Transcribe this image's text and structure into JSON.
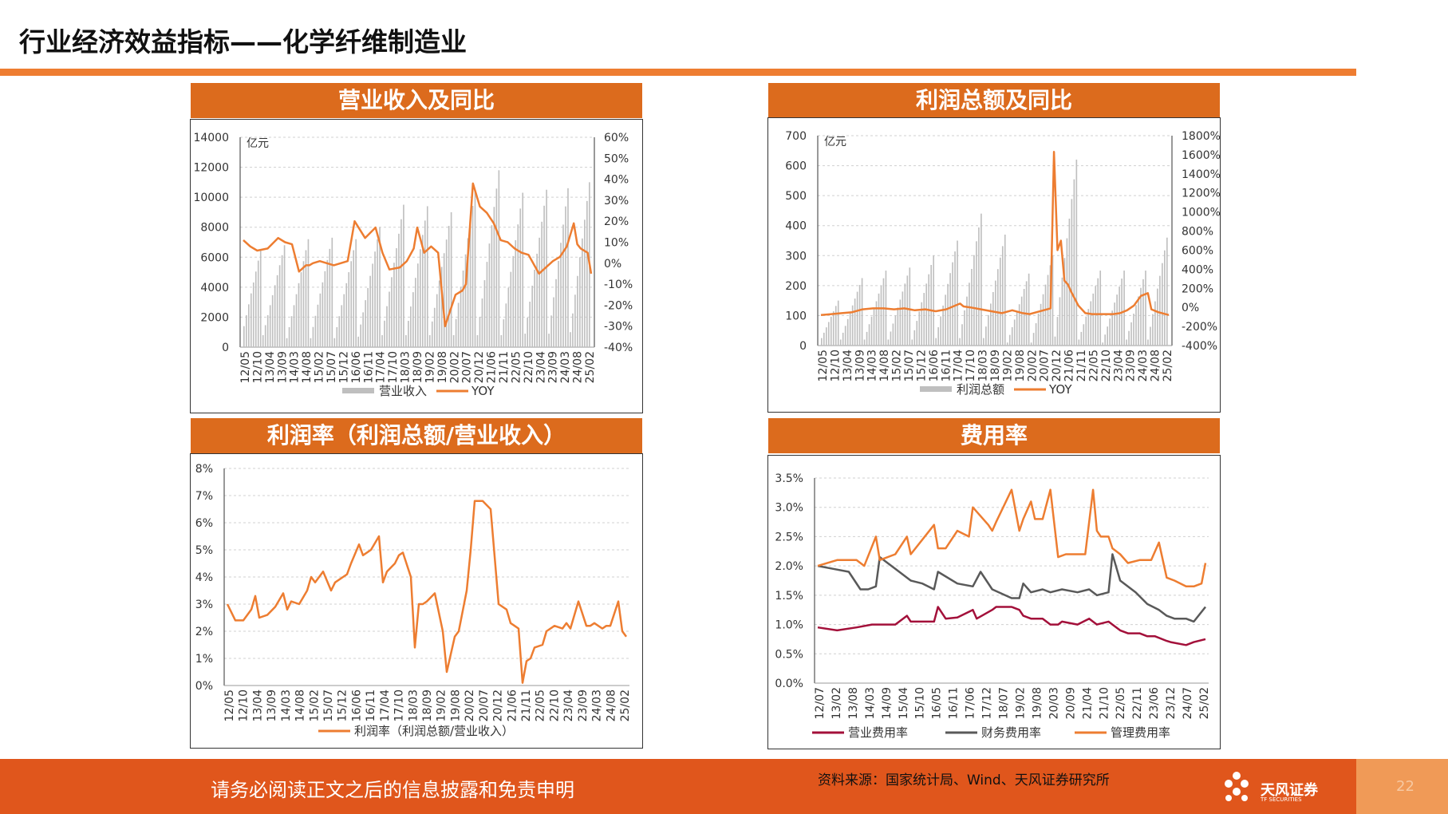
{
  "page": {
    "title": "行业经济效益指标——化学纤维制造业",
    "footer_note": "请务必阅读正文之后的信息披露和免责申明",
    "source": "资料来源：国家统计局、Wind、天风证券研究所",
    "logo_text": "天风证券",
    "logo_sub": "TF SECURITIES",
    "page_number": "22",
    "colors": {
      "accent": "#ee7d31",
      "header": "#dc6b1d",
      "footer": "#e0561c",
      "bar": "#bfbfbf",
      "line": "#ed7d31",
      "maroon": "#a3103a",
      "gray": "#595959"
    }
  },
  "chart_data": [
    {
      "id": "revenue",
      "type": "bar+line",
      "title": "营业收入及同比",
      "unit_label": "亿元",
      "x_ticks": [
        "12/05",
        "12/10",
        "13/04",
        "13/09",
        "14/03",
        "14/08",
        "15/02",
        "15/07",
        "15/12",
        "16/06",
        "16/11",
        "17/04",
        "17/10",
        "18/03",
        "18/09",
        "19/02",
        "19/08",
        "20/02",
        "20/07",
        "20/12",
        "21/06",
        "21/11",
        "22/05",
        "22/10",
        "23/04",
        "23/09",
        "24/03",
        "24/08",
        "25/02"
      ],
      "yleft_ticks": [
        "0",
        "2000",
        "4000",
        "6000",
        "8000",
        "10000",
        "12000",
        "14000"
      ],
      "yright_ticks": [
        "-40%",
        "-30%",
        "-20%",
        "-10%",
        "0%",
        "10%",
        "20%",
        "30%",
        "40%",
        "50%",
        "60%"
      ],
      "ylim_left": [
        0,
        14000
      ],
      "ylim_right": [
        -40,
        60
      ],
      "legend": [
        "营业收入",
        "YOY"
      ],
      "bar_series": {
        "name": "营业收入",
        "cycles": [
          {
            "start": 0,
            "n": 8,
            "from": 1400,
            "to": 6500
          },
          {
            "start": 8,
            "n": 10,
            "from": 800,
            "to": 6800
          },
          {
            "start": 18,
            "n": 10,
            "from": 600,
            "to": 7200
          },
          {
            "start": 28,
            "n": 10,
            "from": 600,
            "to": 7300
          },
          {
            "start": 38,
            "n": 10,
            "from": 600,
            "to": 7200
          },
          {
            "start": 48,
            "n": 10,
            "from": 700,
            "to": 8000
          },
          {
            "start": 58,
            "n": 10,
            "from": 800,
            "to": 9500
          },
          {
            "start": 68,
            "n": 10,
            "from": 800,
            "to": 9400
          },
          {
            "start": 78,
            "n": 10,
            "from": 800,
            "to": 9000
          },
          {
            "start": 88,
            "n": 10,
            "from": 800,
            "to": 10500
          },
          {
            "start": 98,
            "n": 10,
            "from": 800,
            "to": 11800
          },
          {
            "start": 108,
            "n": 10,
            "from": 800,
            "to": 10300
          },
          {
            "start": 118,
            "n": 10,
            "from": 900,
            "to": 10500
          },
          {
            "start": 128,
            "n": 9,
            "from": 900,
            "to": 10600
          },
          {
            "start": 137,
            "n": 9,
            "from": 1000,
            "to": 11000
          }
        ],
        "n_total": 146
      },
      "line_series": {
        "name": "YOY",
        "x_frac": [
          0,
          0.02,
          0.04,
          0.07,
          0.1,
          0.12,
          0.14,
          0.16,
          0.18,
          0.19,
          0.2,
          0.22,
          0.24,
          0.26,
          0.28,
          0.3,
          0.32,
          0.35,
          0.38,
          0.4,
          0.42,
          0.45,
          0.47,
          0.49,
          0.5,
          0.52,
          0.54,
          0.56,
          0.58,
          0.6,
          0.61,
          0.63,
          0.64,
          0.66,
          0.68,
          0.7,
          0.72,
          0.74,
          0.76,
          0.78,
          0.8,
          0.82,
          0.85,
          0.87,
          0.89,
          0.91,
          0.93,
          0.95,
          0.96,
          0.97,
          0.99,
          1.0
        ],
        "values": [
          11,
          8,
          6,
          7,
          12,
          10,
          9,
          -4,
          -1,
          -1,
          0,
          1,
          0,
          -1,
          0,
          1,
          20,
          12,
          17,
          5,
          -3,
          -2,
          1,
          7,
          17,
          5,
          8,
          5,
          -30,
          -20,
          -15,
          -13,
          -10,
          38,
          27,
          24,
          19,
          11,
          10,
          7,
          5,
          4,
          -5,
          -2,
          1,
          3,
          8,
          19,
          9,
          7,
          5,
          -5
        ]
      }
    },
    {
      "id": "profit",
      "type": "bar+line",
      "title": "利润总额及同比",
      "unit_label": "亿元",
      "x_ticks": [
        "12/05",
        "12/10",
        "13/04",
        "13/09",
        "14/03",
        "14/08",
        "15/02",
        "15/07",
        "15/12",
        "16/06",
        "16/11",
        "17/04",
        "17/10",
        "18/03",
        "18/09",
        "19/02",
        "19/08",
        "20/02",
        "20/07",
        "20/12",
        "21/06",
        "21/11",
        "22/05",
        "22/10",
        "23/04",
        "23/09",
        "24/03",
        "24/08",
        "25/02"
      ],
      "yleft_ticks": [
        "0",
        "100",
        "200",
        "300",
        "400",
        "500",
        "600",
        "700"
      ],
      "yright_ticks": [
        "-400%",
        "-200%",
        "0%",
        "200%",
        "400%",
        "600%",
        "800%",
        "1000%",
        "1200%",
        "1400%",
        "1600%",
        "1800%"
      ],
      "ylim_left": [
        0,
        700
      ],
      "ylim_right": [
        -400,
        1800
      ],
      "legend": [
        "利润总额",
        "YOY"
      ],
      "bar_series": {
        "name": "利润总额",
        "cycles": [
          {
            "start": 0,
            "n": 8,
            "from": 25,
            "to": 150
          },
          {
            "start": 8,
            "n": 10,
            "from": 20,
            "to": 225
          },
          {
            "start": 18,
            "n": 10,
            "from": 20,
            "to": 250
          },
          {
            "start": 28,
            "n": 10,
            "from": 20,
            "to": 260
          },
          {
            "start": 38,
            "n": 10,
            "from": 20,
            "to": 300
          },
          {
            "start": 48,
            "n": 10,
            "from": 25,
            "to": 350
          },
          {
            "start": 58,
            "n": 10,
            "from": 25,
            "to": 440
          },
          {
            "start": 68,
            "n": 10,
            "from": 25,
            "to": 370
          },
          {
            "start": 78,
            "n": 10,
            "from": 10,
            "to": 240
          },
          {
            "start": 88,
            "n": 10,
            "from": 10,
            "to": 300
          },
          {
            "start": 98,
            "n": 10,
            "from": 30,
            "to": 620
          },
          {
            "start": 108,
            "n": 10,
            "from": 20,
            "to": 250
          },
          {
            "start": 118,
            "n": 10,
            "from": 10,
            "to": 250
          },
          {
            "start": 128,
            "n": 9,
            "from": 20,
            "to": 250
          },
          {
            "start": 137,
            "n": 9,
            "from": 20,
            "to": 360
          }
        ],
        "n_total": 146
      },
      "line_series": {
        "name": "YOY",
        "x_frac": [
          0,
          0.03,
          0.06,
          0.09,
          0.12,
          0.15,
          0.18,
          0.21,
          0.24,
          0.27,
          0.3,
          0.33,
          0.36,
          0.4,
          0.41,
          0.43,
          0.46,
          0.49,
          0.52,
          0.55,
          0.58,
          0.6,
          0.62,
          0.64,
          0.66,
          0.67,
          0.68,
          0.69,
          0.7,
          0.71,
          0.72,
          0.74,
          0.76,
          0.78,
          0.8,
          0.82,
          0.84,
          0.86,
          0.88,
          0.9,
          0.92,
          0.94,
          0.95,
          0.97,
          1.0
        ],
        "values": [
          -80,
          -70,
          -60,
          -50,
          -20,
          -10,
          -10,
          -20,
          -10,
          -30,
          -20,
          -40,
          -20,
          40,
          10,
          0,
          -20,
          -40,
          -60,
          -30,
          -60,
          -70,
          -50,
          -30,
          -10,
          1630,
          600,
          700,
          280,
          240,
          160,
          20,
          -60,
          -70,
          -70,
          -70,
          -70,
          -60,
          -30,
          20,
          120,
          150,
          -20,
          -50,
          -80
        ]
      }
    },
    {
      "id": "margin",
      "type": "line",
      "title": "利润率（利润总额/营业收入）",
      "x_ticks": [
        "12/05",
        "12/10",
        "13/04",
        "13/09",
        "14/03",
        "14/08",
        "15/02",
        "15/07",
        "15/12",
        "16/06",
        "16/11",
        "17/04",
        "17/10",
        "18/03",
        "18/09",
        "19/02",
        "19/08",
        "20/02",
        "20/07",
        "20/12",
        "21/06",
        "21/11",
        "22/05",
        "22/10",
        "23/04",
        "23/09",
        "24/03",
        "24/08",
        "25/02"
      ],
      "y_ticks": [
        "0%",
        "1%",
        "2%",
        "3%",
        "4%",
        "5%",
        "6%",
        "7%",
        "8%"
      ],
      "ylim": [
        0,
        8
      ],
      "legend": [
        "利润率（利润总额/营业收入）"
      ],
      "series": {
        "name": "利润率（利润总额/营业收入）",
        "x_frac": [
          0,
          0.02,
          0.04,
          0.06,
          0.07,
          0.08,
          0.1,
          0.12,
          0.14,
          0.15,
          0.16,
          0.18,
          0.2,
          0.21,
          0.22,
          0.24,
          0.26,
          0.27,
          0.29,
          0.3,
          0.31,
          0.33,
          0.34,
          0.36,
          0.38,
          0.39,
          0.4,
          0.42,
          0.43,
          0.44,
          0.46,
          0.47,
          0.48,
          0.49,
          0.5,
          0.52,
          0.54,
          0.55,
          0.57,
          0.58,
          0.6,
          0.61,
          0.62,
          0.64,
          0.66,
          0.68,
          0.7,
          0.71,
          0.72,
          0.73,
          0.74,
          0.75,
          0.76,
          0.77,
          0.79,
          0.8,
          0.82,
          0.84,
          0.85,
          0.86,
          0.88,
          0.9,
          0.91,
          0.92,
          0.94,
          0.95,
          0.96,
          0.98,
          0.99,
          1.0
        ],
        "values": [
          3.0,
          2.4,
          2.4,
          2.8,
          3.3,
          2.5,
          2.6,
          2.9,
          3.4,
          2.8,
          3.1,
          3.0,
          3.5,
          4.0,
          3.8,
          4.2,
          3.5,
          3.8,
          4.0,
          4.1,
          4.5,
          5.2,
          4.8,
          5.0,
          5.5,
          3.8,
          4.2,
          4.5,
          4.8,
          4.9,
          4.0,
          1.4,
          3.0,
          3.0,
          3.1,
          3.4,
          2.0,
          0.5,
          1.8,
          2.0,
          3.5,
          5.0,
          6.8,
          6.8,
          6.5,
          3.0,
          2.8,
          2.3,
          2.2,
          2.1,
          0.1,
          0.9,
          1.0,
          1.4,
          1.5,
          2.0,
          2.2,
          2.1,
          2.3,
          2.1,
          3.1,
          2.2,
          2.2,
          2.3,
          2.1,
          2.2,
          2.2,
          3.1,
          2.0,
          1.8
        ]
      }
    },
    {
      "id": "expense",
      "type": "line",
      "title": "费用率",
      "x_ticks": [
        "12/07",
        "13/02",
        "13/08",
        "14/03",
        "14/09",
        "15/04",
        "15/10",
        "16/05",
        "16/11",
        "17/06",
        "17/12",
        "18/07",
        "19/02",
        "19/08",
        "20/03",
        "20/09",
        "21/04",
        "21/10",
        "22/05",
        "22/11",
        "23/06",
        "23/12",
        "24/07",
        "25/02"
      ],
      "y_ticks": [
        "0.0%",
        "0.5%",
        "1.0%",
        "1.5%",
        "2.0%",
        "2.5%",
        "3.0%",
        "3.5%"
      ],
      "ylim": [
        0,
        3.5
      ],
      "legend": [
        "营业费用率",
        "财务费用率",
        "管理费用率"
      ],
      "series": [
        {
          "name": "营业费用率",
          "x_frac": [
            0,
            0.05,
            0.1,
            0.14,
            0.15,
            0.2,
            0.23,
            0.24,
            0.3,
            0.31,
            0.33,
            0.36,
            0.4,
            0.41,
            0.45,
            0.46,
            0.5,
            0.52,
            0.53,
            0.55,
            0.58,
            0.6,
            0.62,
            0.63,
            0.67,
            0.7,
            0.72,
            0.75,
            0.76,
            0.78,
            0.8,
            0.83,
            0.85,
            0.87,
            0.9,
            0.91,
            0.95,
            0.97,
            1.0
          ],
          "values": [
            0.95,
            0.9,
            0.95,
            1.0,
            1.0,
            1.0,
            1.15,
            1.05,
            1.05,
            1.3,
            1.1,
            1.12,
            1.25,
            1.1,
            1.25,
            1.3,
            1.3,
            1.25,
            1.15,
            1.1,
            1.1,
            1.0,
            1.0,
            1.05,
            1.0,
            1.1,
            1.0,
            1.05,
            1.0,
            0.9,
            0.85,
            0.85,
            0.8,
            0.8,
            0.72,
            0.7,
            0.65,
            0.7,
            0.75
          ]
        },
        {
          "name": "财务费用率",
          "x_frac": [
            0,
            0.04,
            0.08,
            0.11,
            0.13,
            0.15,
            0.16,
            0.2,
            0.24,
            0.27,
            0.3,
            0.31,
            0.36,
            0.4,
            0.42,
            0.45,
            0.5,
            0.52,
            0.53,
            0.55,
            0.58,
            0.6,
            0.63,
            0.67,
            0.7,
            0.72,
            0.75,
            0.76,
            0.78,
            0.82,
            0.85,
            0.88,
            0.9,
            0.92,
            0.95,
            0.97,
            1.0
          ],
          "values": [
            2.0,
            1.95,
            1.9,
            1.6,
            1.6,
            1.65,
            2.15,
            1.95,
            1.75,
            1.7,
            1.6,
            1.9,
            1.7,
            1.65,
            1.9,
            1.6,
            1.45,
            1.45,
            1.7,
            1.55,
            1.6,
            1.55,
            1.6,
            1.55,
            1.6,
            1.5,
            1.55,
            2.2,
            1.75,
            1.55,
            1.35,
            1.25,
            1.15,
            1.1,
            1.1,
            1.05,
            1.3
          ]
        },
        {
          "name": "管理费用率",
          "x_frac": [
            0,
            0.05,
            0.1,
            0.12,
            0.15,
            0.16,
            0.2,
            0.23,
            0.24,
            0.3,
            0.31,
            0.33,
            0.36,
            0.39,
            0.4,
            0.44,
            0.45,
            0.46,
            0.5,
            0.52,
            0.53,
            0.55,
            0.56,
            0.58,
            0.6,
            0.62,
            0.64,
            0.67,
            0.69,
            0.71,
            0.72,
            0.73,
            0.75,
            0.76,
            0.78,
            0.8,
            0.83,
            0.86,
            0.88,
            0.9,
            0.92,
            0.95,
            0.97,
            0.99,
            1.0
          ],
          "values": [
            2.0,
            2.1,
            2.1,
            2.0,
            2.5,
            2.1,
            2.2,
            2.5,
            2.2,
            2.7,
            2.3,
            2.3,
            2.6,
            2.5,
            3.0,
            2.7,
            2.6,
            2.75,
            3.3,
            2.6,
            2.8,
            3.1,
            2.8,
            2.8,
            3.3,
            2.15,
            2.2,
            2.2,
            2.2,
            3.3,
            2.6,
            2.5,
            2.5,
            2.3,
            2.2,
            2.05,
            2.1,
            2.1,
            2.4,
            1.8,
            1.75,
            1.65,
            1.65,
            1.7,
            2.05
          ]
        }
      ]
    }
  ]
}
